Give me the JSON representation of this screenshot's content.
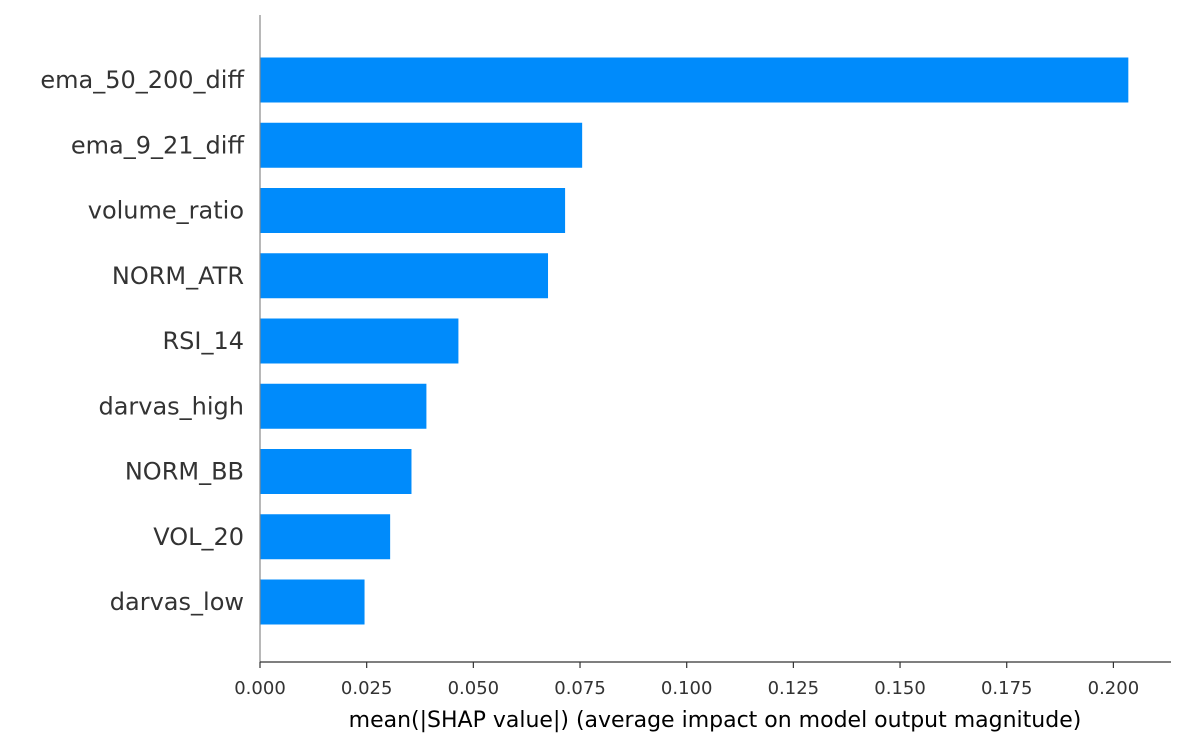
{
  "chart_data": {
    "type": "bar",
    "orientation": "horizontal",
    "categories": [
      "ema_50_200_diff",
      "ema_9_21_diff",
      "volume_ratio",
      "NORM_ATR",
      "RSI_14",
      "darvas_high",
      "NORM_BB",
      "VOL_20",
      "darvas_low"
    ],
    "values": [
      0.2035,
      0.0755,
      0.0715,
      0.0675,
      0.0465,
      0.039,
      0.0355,
      0.0305,
      0.0245
    ],
    "xlabel": "mean(|SHAP value|) (average impact on model output magnitude)",
    "xlim": [
      0.0,
      0.2135
    ],
    "xticks": [
      "0.000",
      "0.025",
      "0.050",
      "0.075",
      "0.100",
      "0.125",
      "0.150",
      "0.175",
      "0.200"
    ],
    "bar_color": "#008bfb",
    "grid": false
  }
}
